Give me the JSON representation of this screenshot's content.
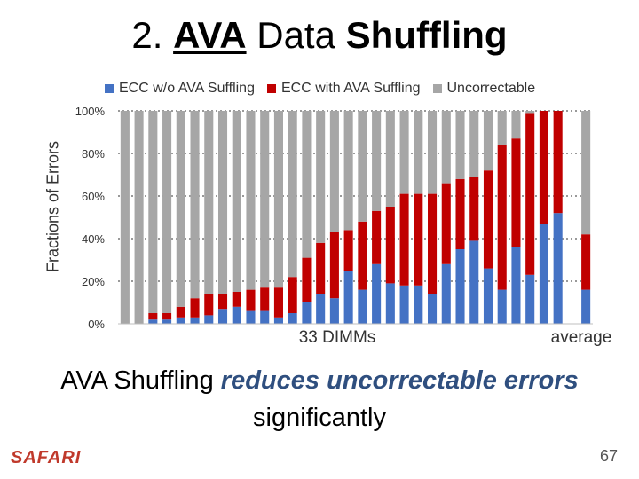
{
  "slide": {
    "title_number": "2.",
    "title_ava": "AVA",
    "title_data": "Data",
    "title_shuffling": "Shuffling",
    "caption_line1_plain": "AVA Shuffling ",
    "caption_line1_emph": "reduces uncorrectable errors",
    "caption_line2": "significantly",
    "logo": "SAFARI",
    "page_number": "67"
  },
  "chart_data": {
    "type": "bar",
    "stacked": true,
    "ylabel": "Fractions of Errors",
    "xlabel": "33 DIMMs",
    "xlabel_avg": "average",
    "ylim": [
      0,
      100
    ],
    "yticks": [
      "0%",
      "20%",
      "40%",
      "60%",
      "80%",
      "100%"
    ],
    "grid": true,
    "legend_position": "top",
    "categories_count": 34,
    "series": [
      {
        "name": "ECC w/o AVA Suffling",
        "color": "#4472c4",
        "values": [
          0,
          0,
          2,
          2,
          3,
          3,
          4,
          7,
          8,
          6,
          6,
          3,
          5,
          10,
          14,
          12,
          25,
          16,
          28,
          19,
          18,
          18,
          14,
          28,
          35,
          39,
          26,
          16,
          36,
          23,
          47,
          52,
          0,
          16
        ]
      },
      {
        "name": "ECC with AVA Suffling",
        "color": "#c00000",
        "values": [
          0,
          0,
          3,
          3,
          5,
          9,
          10,
          7,
          7,
          10,
          11,
          14,
          17,
          21,
          24,
          31,
          19,
          32,
          25,
          36,
          43,
          43,
          47,
          38,
          33,
          30,
          46,
          68,
          51,
          76,
          53,
          48,
          0,
          26
        ]
      },
      {
        "name": "Uncorrectable",
        "color": "#a6a6a6",
        "values": [
          100,
          100,
          95,
          95,
          92,
          88,
          86,
          86,
          85,
          84,
          83,
          83,
          78,
          69,
          62,
          57,
          56,
          52,
          47,
          45,
          39,
          39,
          39,
          34,
          32,
          31,
          28,
          16,
          13,
          1,
          0,
          0,
          0,
          58
        ]
      }
    ]
  }
}
